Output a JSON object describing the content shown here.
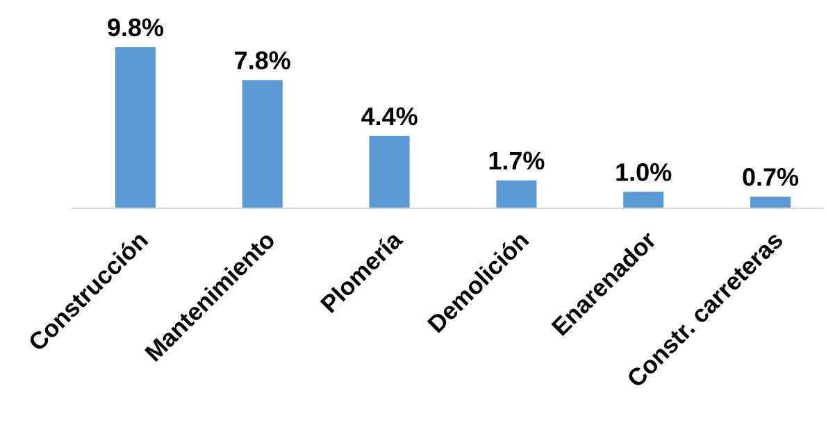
{
  "chart_data": {
    "type": "bar",
    "categories": [
      "Construcción",
      "Mantenimiento",
      "Plomería",
      "Demolición",
      "Enarenador",
      "Constr. carreteras"
    ],
    "values": [
      9.8,
      7.8,
      4.4,
      1.7,
      1.0,
      0.7
    ],
    "value_labels": [
      "9.8%",
      "7.8%",
      "4.4%",
      "1.7%",
      "1.0%",
      "0.7%"
    ],
    "unit": "%",
    "title": "",
    "xlabel": "",
    "ylabel": "",
    "ylim": [
      0,
      9.8
    ],
    "grid": false,
    "legend": "none",
    "bar_color": "#5b9bd5",
    "axis_color": "#d9d9d9"
  }
}
